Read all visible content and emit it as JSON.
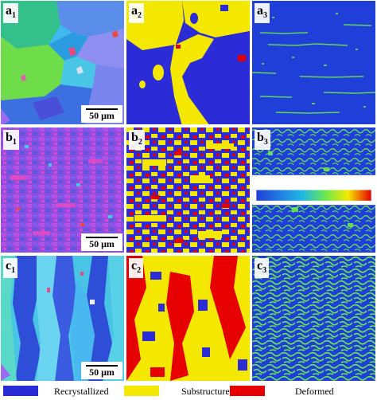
{
  "panels": [
    {
      "prefix": "a",
      "sub": "1",
      "scale": "50 μm"
    },
    {
      "prefix": "a",
      "sub": "2"
    },
    {
      "prefix": "a",
      "sub": "3"
    },
    {
      "prefix": "b",
      "sub": "1",
      "scale": "50 μm"
    },
    {
      "prefix": "b",
      "sub": "2"
    },
    {
      "prefix": "b",
      "sub": "3"
    },
    {
      "prefix": "c",
      "sub": "1",
      "scale": "50 μm"
    },
    {
      "prefix": "c",
      "sub": "2"
    },
    {
      "prefix": "c",
      "sub": "3"
    }
  ],
  "legend": [
    {
      "label": "Recrystallized",
      "color": "#2b2bd8"
    },
    {
      "label": "Substructure",
      "color": "#f5e800"
    },
    {
      "label": "Deformed",
      "color": "#e60000"
    }
  ],
  "colors": {
    "recrystallized": "#2b2bd8",
    "substructure": "#f5e800",
    "deformed": "#e60000",
    "kam_background": "#1f3fd8",
    "kam_high": "#6be84e"
  }
}
